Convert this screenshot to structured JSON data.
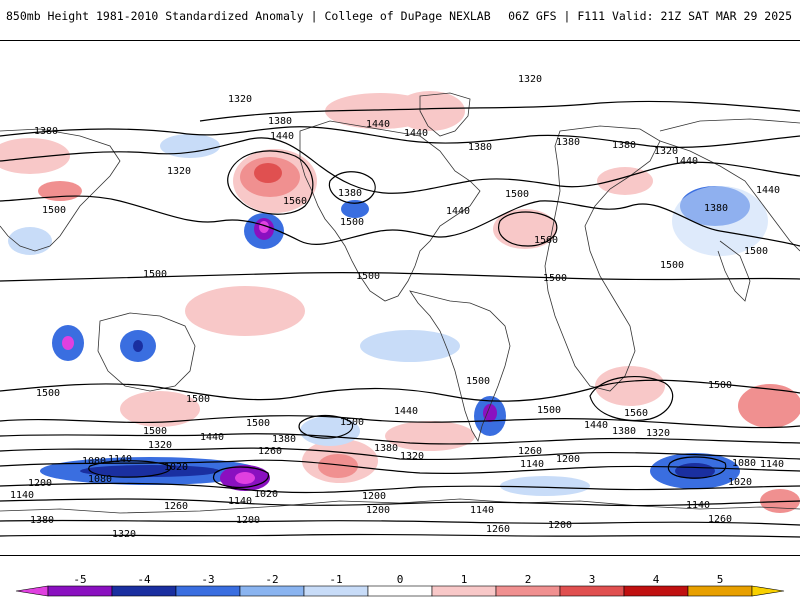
{
  "header": {
    "title_left": "850mb Height 1981-2010 Standardized Anomaly | College of DuPage NEXLAB",
    "title_right": "06Z GFS | F111 Valid: 21Z SAT MAR 29 2025"
  },
  "colorbar": {
    "ticks": [
      "-5",
      "-4",
      "-3",
      "-2",
      "-1",
      "0",
      "1",
      "2",
      "3",
      "4",
      "5"
    ],
    "colors": [
      "#e040e0",
      "#8a10c0",
      "#1a2fa0",
      "#3a6ee0",
      "#8ab4f0",
      "#c8dcf8",
      "#ffffff",
      "#f8c8c8",
      "#f09090",
      "#e05050",
      "#c01010",
      "#e8a000",
      "#f8d000"
    ]
  },
  "contour_labels": [
    {
      "text": "1320",
      "name": "contour-label-1320-north-pacific"
    },
    {
      "text": "1320",
      "name": "contour-label-1320-arctic"
    },
    {
      "text": "1380",
      "name": "contour-label-1380-west"
    },
    {
      "text": "1380",
      "name": "contour-label-1380-gulf-of-alaska"
    },
    {
      "text": "1440",
      "name": "contour-label-1440-alaska"
    },
    {
      "text": "1440",
      "name": "contour-label-1440-canada"
    },
    {
      "text": "1440",
      "name": "contour-label-1440-hudson"
    },
    {
      "text": "1380",
      "name": "contour-label-1380-greenland"
    },
    {
      "text": "1380",
      "name": "contour-label-1380-iceland"
    },
    {
      "text": "1380",
      "name": "contour-label-1380-europe"
    },
    {
      "text": "1320",
      "name": "contour-label-1320-scandinavia"
    },
    {
      "text": "1440",
      "name": "contour-label-1440-russia"
    },
    {
      "text": "1440",
      "name": "contour-label-1440-central-asia"
    },
    {
      "text": "1320",
      "name": "contour-label-1320-pacific-ridge"
    },
    {
      "text": "1500",
      "name": "contour-label-1500-far-west"
    },
    {
      "text": "1560",
      "name": "contour-label-1560-pacific"
    },
    {
      "text": "1380",
      "name": "contour-label-1380-rockies"
    },
    {
      "text": "1500",
      "name": "contour-label-1500-rockies"
    },
    {
      "text": "1440",
      "name": "contour-label-1440-us"
    },
    {
      "text": "1500",
      "name": "contour-label-1500-atlantic"
    },
    {
      "text": "1560",
      "name": "contour-label-1560-atlantic"
    },
    {
      "text": "1380",
      "name": "contour-label-1380-siberia"
    },
    {
      "text": "1500",
      "name": "contour-label-1500-asia"
    },
    {
      "text": "1500",
      "name": "contour-label-1500-india"
    },
    {
      "text": "1500",
      "name": "contour-label-1500-west-pacific"
    },
    {
      "text": "1500",
      "name": "contour-label-1500-central-pacific"
    },
    {
      "text": "1500",
      "name": "contour-label-1500-east-pacific"
    },
    {
      "text": "1500",
      "name": "contour-label-1500-south-america"
    },
    {
      "text": "1500",
      "name": "contour-label-1500-argentina"
    },
    {
      "text": "1500",
      "name": "contour-label-1500-indian-ocean"
    },
    {
      "text": "1500",
      "name": "contour-label-1500-south-indian"
    },
    {
      "text": "1500",
      "name": "contour-label-1500-south-atlantic"
    },
    {
      "text": "1560",
      "name": "contour-label-1560-south-atlantic"
    },
    {
      "text": "1500",
      "name": "contour-label-1500-south-west"
    },
    {
      "text": "1500",
      "name": "contour-label-1500-tasman"
    },
    {
      "text": "1500",
      "name": "contour-label-1500-south-pacific"
    },
    {
      "text": "1440",
      "name": "contour-label-1440-south-pacific"
    },
    {
      "text": "1440",
      "name": "contour-label-1440-south-atlantic"
    },
    {
      "text": "1440",
      "name": "contour-label-1440-southwest"
    },
    {
      "text": "1380",
      "name": "contour-label-1380-south-atlantic"
    },
    {
      "text": "1320",
      "name": "contour-label-1320-south-atlantic"
    },
    {
      "text": "1380",
      "name": "contour-label-1380-south-pacific"
    },
    {
      "text": "1380",
      "name": "contour-label-1380-south-central"
    },
    {
      "text": "1320",
      "name": "contour-label-1320-south-central"
    },
    {
      "text": "1320",
      "name": "contour-label-1320-southwest"
    },
    {
      "text": "1260",
      "name": "contour-label-1260-south-pacific"
    },
    {
      "text": "1260",
      "name": "contour-label-1260-drake"
    },
    {
      "text": "1260",
      "name": "contour-label-1260-southeast"
    },
    {
      "text": "1260",
      "name": "contour-label-1260-west"
    },
    {
      "text": "1260",
      "name": "contour-label-1260-south"
    },
    {
      "text": "1200",
      "name": "contour-label-1200-west"
    },
    {
      "text": "1200",
      "name": "contour-label-1200-south-pacific"
    },
    {
      "text": "1200",
      "name": "contour-label-1200-south-pacific-2"
    },
    {
      "text": "1200",
      "name": "contour-label-1200-weddell"
    },
    {
      "text": "1200",
      "name": "contour-label-1200-antarctic"
    },
    {
      "text": "1200",
      "name": "contour-label-1200-antarctic-2"
    },
    {
      "text": "1140",
      "name": "contour-label-1140-west"
    },
    {
      "text": "1140",
      "name": "contour-label-1140-west-2"
    },
    {
      "text": "1140",
      "name": "contour-label-1140-south-pacific"
    },
    {
      "text": "1140",
      "name": "contour-label-1140-antarctic"
    },
    {
      "text": "1140",
      "name": "contour-label-1140-weddell"
    },
    {
      "text": "1140",
      "name": "contour-label-1140-east"
    },
    {
      "text": "1140",
      "name": "contour-label-1140-east-2"
    },
    {
      "text": "1080",
      "name": "contour-label-1080-west"
    },
    {
      "text": "1080",
      "name": "contour-label-1080-west-2"
    },
    {
      "text": "1080",
      "name": "contour-label-1080-east"
    },
    {
      "text": "1020",
      "name": "contour-label-1020-west"
    },
    {
      "text": "1020",
      "name": "contour-label-1020-central"
    },
    {
      "text": "1020",
      "name": "contour-label-1020-east"
    },
    {
      "text": "1380",
      "name": "contour-label-1380-southwest-edge"
    },
    {
      "text": "1320",
      "name": "contour-label-1320-bottom"
    }
  ]
}
